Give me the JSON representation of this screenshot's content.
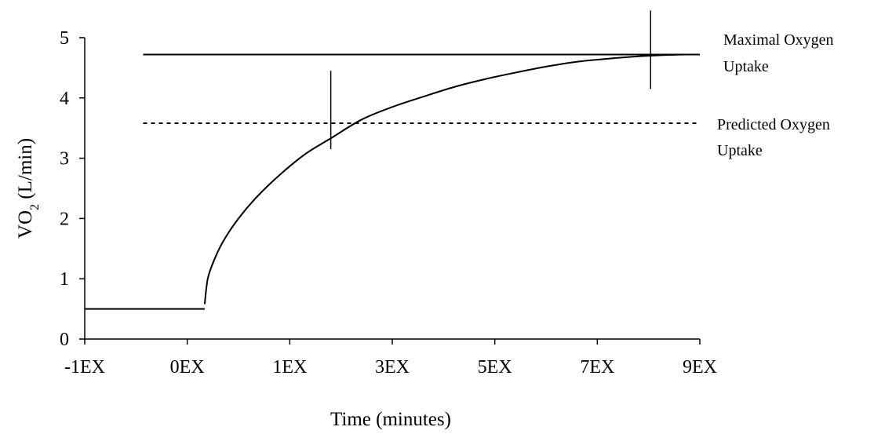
{
  "chart_data": {
    "type": "line",
    "xlabel": "Time (minutes)",
    "ylabel_main": "VO",
    "ylabel_sub": "2",
    "ylabel_rest": " (L/min)",
    "xlim": [
      -1,
      9
    ],
    "ylim": [
      0,
      5
    ],
    "x_tick_labels": [
      "-1EX",
      "0EX",
      "1EX",
      "3EX",
      "5EX",
      "7EX",
      "9EX"
    ],
    "y_tick_labels": [
      "0",
      "1",
      "2",
      "3",
      "4",
      "5"
    ],
    "y_ticks": [
      0,
      1,
      2,
      3,
      4,
      5
    ],
    "grid": false,
    "series": [
      {
        "role": "baseline",
        "style": "solid",
        "x": [
          -1,
          0.95
        ],
        "y": [
          0.5,
          0.5
        ]
      },
      {
        "role": "uptake-curve",
        "style": "solid",
        "x": [
          0.95,
          1.0,
          1.1,
          1.25,
          1.5,
          1.8,
          2.2,
          2.6,
          3.0,
          3.5,
          4.0,
          4.5,
          5.0,
          5.5,
          6.0,
          6.5,
          7.0,
          7.5,
          8.0,
          8.4,
          8.8,
          9.0
        ],
        "y": [
          0.58,
          1.0,
          1.3,
          1.62,
          2.0,
          2.36,
          2.75,
          3.08,
          3.33,
          3.64,
          3.85,
          4.02,
          4.18,
          4.31,
          4.42,
          4.52,
          4.6,
          4.65,
          4.69,
          4.71,
          4.72,
          4.72
        ]
      },
      {
        "role": "maximal-oxygen-uptake",
        "style": "solid",
        "x": [
          -0.05,
          9.0
        ],
        "y": [
          4.72,
          4.72
        ]
      },
      {
        "role": "predicted-oxygen-uptake",
        "style": "dotted",
        "x": [
          -0.05,
          9.0
        ],
        "y": [
          3.58,
          3.58
        ]
      }
    ],
    "markers": [
      {
        "x": 3.0,
        "y_range": [
          3.15,
          4.45
        ]
      },
      {
        "x": 8.2,
        "y_range": [
          4.15,
          5.45
        ]
      }
    ],
    "annotations": [
      {
        "lines": [
          "Maximal Oxygen",
          "Uptake"
        ]
      },
      {
        "lines": [
          "Predicted Oxygen",
          "Uptake"
        ]
      }
    ]
  }
}
